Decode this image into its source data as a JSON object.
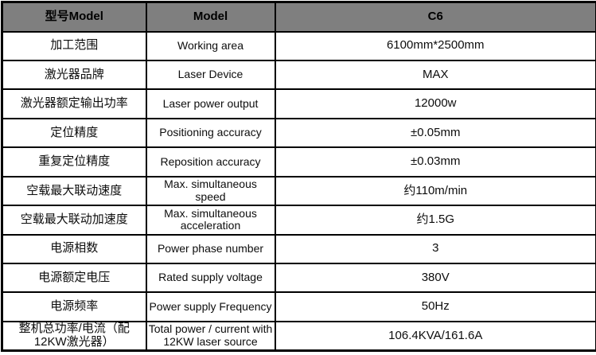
{
  "colors": {
    "header_bg": "#7f7f7f",
    "header_text": "#000000",
    "border": "#000000",
    "row_bg": "#ffffff",
    "body_text": "#0d0d0d"
  },
  "table": {
    "header": {
      "model_cn": "型号Model",
      "model_en": "Model",
      "value": "C6"
    },
    "rows": [
      {
        "cn": "加工范围",
        "en": "Working area",
        "value": "6100mm*2500mm"
      },
      {
        "cn": "激光器品牌",
        "en": "Laser Device",
        "value": "MAX"
      },
      {
        "cn": "激光器额定输出功率",
        "en": "Laser power output",
        "value": "12000w"
      },
      {
        "cn": "定位精度",
        "en": "Positioning accuracy",
        "value": "±0.05mm"
      },
      {
        "cn": "重复定位精度",
        "en": "Reposition accuracy",
        "value": "±0.03mm"
      },
      {
        "cn": "空载最大联动速度",
        "en": "Max. simultaneous speed",
        "value": "约110m/min"
      },
      {
        "cn": "空载最大联动加速度",
        "en": "Max. simultaneous acceleration",
        "value": "约1.5G"
      },
      {
        "cn": "电源相数",
        "en": "Power phase number",
        "value": "3"
      },
      {
        "cn": "电源额定电压",
        "en": "Rated supply voltage",
        "value": "380V"
      },
      {
        "cn": "电源频率",
        "en": "Power supply Frequency",
        "value": "50Hz"
      },
      {
        "cn": "整机总功率/电流（配12KW激光器）",
        "en": "Total power / current with 12KW laser source",
        "value": "106.4KVA/161.6A"
      }
    ]
  }
}
